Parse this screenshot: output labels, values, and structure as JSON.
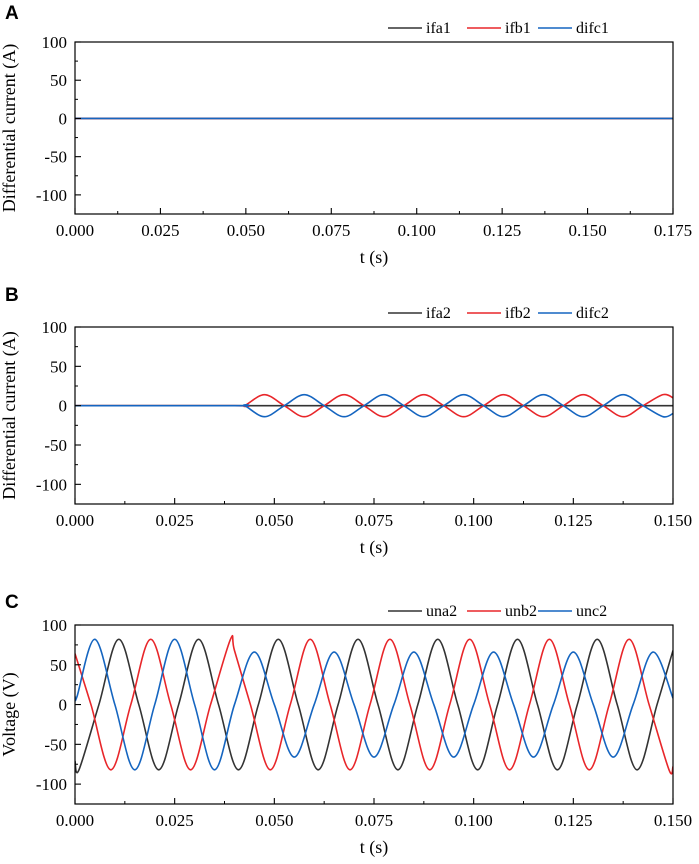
{
  "chart_data": [
    {
      "panel_label": "A",
      "type": "line",
      "xlabel": "t (s)",
      "ylabel": "Differential current (A)",
      "xlim": [
        0,
        0.175
      ],
      "ylim": [
        -125,
        100
      ],
      "xticks": [
        "0.000",
        "0.025",
        "0.050",
        "0.075",
        "0.100",
        "0.125",
        "0.150",
        "0.175"
      ],
      "yticks": [
        "100",
        "50",
        "0",
        "-50",
        "-100"
      ],
      "legend_position": "top-right",
      "grid": false,
      "series": [
        {
          "name": "ifa1",
          "color": "#333333",
          "x": [
            0,
            0.175
          ],
          "y": [
            0,
            0
          ]
        },
        {
          "name": "ifb1",
          "color": "#e8262a",
          "x": [
            0,
            0.175
          ],
          "y": [
            0,
            0
          ]
        },
        {
          "name": "difc1",
          "color": "#1565c0",
          "x": [
            0,
            0.175
          ],
          "y": [
            0,
            0
          ]
        }
      ]
    },
    {
      "panel_label": "B",
      "type": "line",
      "xlabel": "t (s)",
      "ylabel": "Differential current (A)",
      "xlim": [
        0,
        0.15
      ],
      "ylim": [
        -125,
        100
      ],
      "xticks": [
        "0.000",
        "0.025",
        "0.050",
        "0.075",
        "0.100",
        "0.125",
        "0.150"
      ],
      "yticks": [
        "100",
        "50",
        "0",
        "-50",
        "-100"
      ],
      "legend_position": "top-right",
      "grid": false,
      "series": [
        {
          "name": "ifa2",
          "color": "#333333",
          "x": [
            0,
            0.15
          ],
          "y": [
            0,
            0
          ]
        },
        {
          "name": "ifb2",
          "color": "#e8262a",
          "x": [
            0,
            0.04,
            0.0425,
            0.0475,
            0.0525,
            0.0575,
            0.0625,
            0.0675,
            0.0725,
            0.0775,
            0.0825,
            0.0875,
            0.0925,
            0.0975,
            0.1025,
            0.1075,
            0.1125,
            0.1175,
            0.1225,
            0.1275,
            0.1325,
            0.1375,
            0.1425,
            0.1475,
            0.15
          ],
          "y": [
            0,
            0,
            0,
            14,
            0,
            -14,
            0,
            14,
            0,
            -14,
            0,
            14,
            0,
            -14,
            0,
            14,
            0,
            -14,
            0,
            14,
            0,
            -14,
            0,
            14,
            10
          ]
        },
        {
          "name": "difc2",
          "color": "#1565c0",
          "x": [
            0,
            0.04,
            0.0425,
            0.0475,
            0.0525,
            0.0575,
            0.0625,
            0.0675,
            0.0725,
            0.0775,
            0.0825,
            0.0875,
            0.0925,
            0.0975,
            0.1025,
            0.1075,
            0.1125,
            0.1175,
            0.1225,
            0.1275,
            0.1325,
            0.1375,
            0.1425,
            0.1475,
            0.15
          ],
          "y": [
            0,
            0,
            0,
            -14,
            0,
            14,
            0,
            -14,
            0,
            14,
            0,
            -14,
            0,
            14,
            0,
            -14,
            0,
            14,
            0,
            -14,
            0,
            14,
            0,
            -14,
            -10
          ]
        }
      ]
    },
    {
      "panel_label": "C",
      "type": "line",
      "xlabel": "t (s)",
      "ylabel": "Voltage (V)",
      "xlim": [
        0,
        0.15
      ],
      "ylim": [
        -125,
        100
      ],
      "xticks": [
        "0.000",
        "0.025",
        "0.050",
        "0.075",
        "0.100",
        "0.125",
        "0.150"
      ],
      "yticks": [
        "100",
        "50",
        "0",
        "-50",
        "-100"
      ],
      "legend_position": "top-right",
      "grid": false,
      "series": [
        {
          "name": "una2",
          "color": "#333333",
          "x": [
            0,
            0.001,
            0.006,
            0.011,
            0.016,
            0.021,
            0.026,
            0.031,
            0.036,
            0.041,
            0.046,
            0.051,
            0.056,
            0.061,
            0.066,
            0.071,
            0.076,
            0.081,
            0.086,
            0.091,
            0.096,
            0.101,
            0.106,
            0.111,
            0.116,
            0.121,
            0.126,
            0.131,
            0.136,
            0.141,
            0.146,
            0.15
          ],
          "y": [
            -71,
            -82,
            0,
            82,
            0,
            -82,
            0,
            82,
            0,
            -82,
            0,
            82,
            0,
            -82,
            0,
            82,
            0,
            -82,
            0,
            82,
            0,
            -82,
            0,
            82,
            0,
            -82,
            0,
            82,
            0,
            -82,
            0,
            68
          ]
        },
        {
          "name": "unb2",
          "color": "#e8262a",
          "x": [
            0,
            0.004,
            0.009,
            0.014,
            0.019,
            0.024,
            0.029,
            0.034,
            0.039,
            0.04,
            0.044,
            0.049,
            0.054,
            0.059,
            0.064,
            0.069,
            0.074,
            0.079,
            0.084,
            0.089,
            0.094,
            0.099,
            0.104,
            0.109,
            0.114,
            0.119,
            0.124,
            0.129,
            0.134,
            0.139,
            0.144,
            0.149,
            0.15
          ],
          "y": [
            64,
            0,
            -82,
            0,
            82,
            0,
            -82,
            0,
            82,
            68,
            0,
            -82,
            0,
            82,
            0,
            -82,
            0,
            82,
            0,
            -82,
            0,
            82,
            0,
            -82,
            0,
            82,
            0,
            -82,
            0,
            82,
            0,
            -82,
            -78
          ]
        },
        {
          "name": "unc2",
          "color": "#1565c0",
          "x": [
            0,
            0.0005,
            0.005,
            0.01,
            0.015,
            0.02,
            0.025,
            0.03,
            0.035,
            0.04,
            0.045,
            0.05,
            0.055,
            0.06,
            0.065,
            0.07,
            0.075,
            0.08,
            0.085,
            0.09,
            0.095,
            0.1,
            0.105,
            0.11,
            0.115,
            0.12,
            0.125,
            0.13,
            0.135,
            0.14,
            0.145,
            0.15
          ],
          "y": [
            10,
            10,
            82,
            0,
            -82,
            0,
            82,
            0,
            -82,
            0,
            66,
            0,
            -66,
            0,
            66,
            0,
            -66,
            0,
            66,
            0,
            -66,
            0,
            66,
            0,
            -66,
            0,
            66,
            0,
            -66,
            0,
            66,
            8
          ]
        }
      ]
    }
  ]
}
